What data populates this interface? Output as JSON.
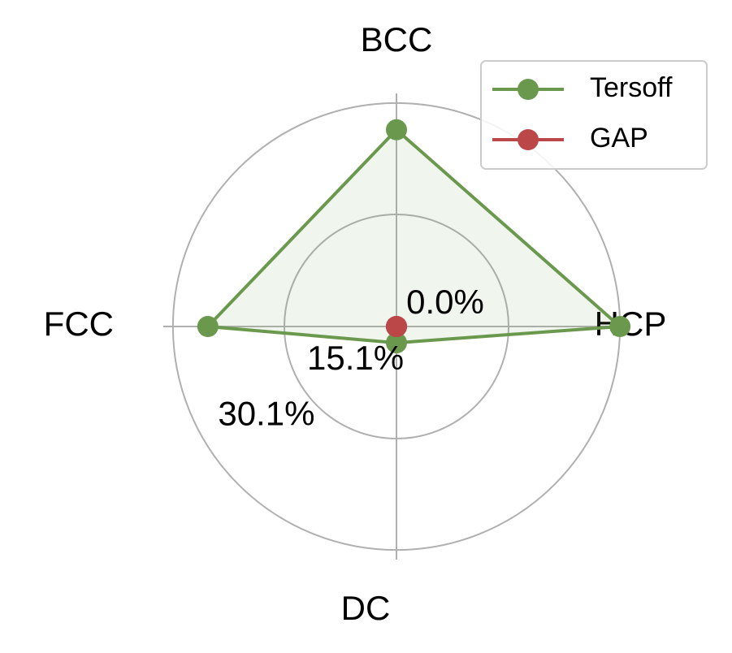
{
  "chart_data": {
    "type": "radar",
    "categories": [
      "BCC",
      "HCP",
      "DC",
      "FCC"
    ],
    "series": [
      {
        "name": "Tersoff",
        "color": "#6a994e",
        "values": [
          26.5,
          30.1,
          2.2,
          25.4
        ]
      },
      {
        "name": "GAP",
        "color": "#bc4749",
        "values": [
          0,
          0,
          0,
          0
        ]
      }
    ],
    "rlim": [
      0,
      31.4
    ],
    "rticks": [
      {
        "value": 0,
        "label": "0.0%"
      },
      {
        "value": 15.1,
        "label": "15.1%"
      },
      {
        "value": 30.1,
        "label": "30.1%"
      }
    ],
    "grid": true,
    "legend": "upper right"
  }
}
